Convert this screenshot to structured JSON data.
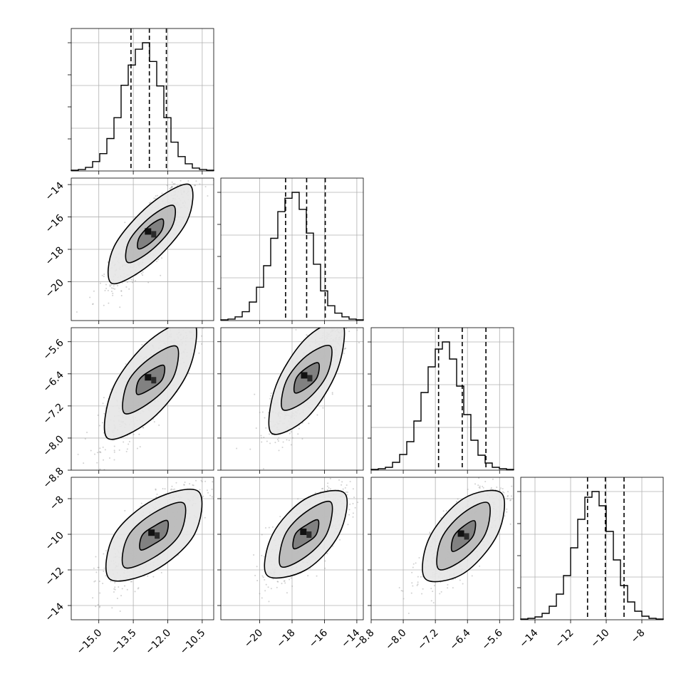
{
  "chart_data": {
    "type": "corner",
    "grid": true,
    "parameters": [
      {
        "index": 0,
        "range": [
          -16.2,
          -10.0
        ],
        "ticks": [
          -15.0,
          -13.5,
          -12.0,
          -10.5
        ],
        "tick_labels": [
          "−15.0",
          "−13.5",
          "−12.0",
          "−10.5"
        ],
        "quantiles": [
          -13.6,
          -12.8,
          -12.06
        ],
        "hist": {
          "edges": [
            -16.2,
            -15.89,
            -15.58,
            -15.27,
            -14.96,
            -14.65,
            -14.34,
            -14.03,
            -13.72,
            -13.41,
            -13.1,
            -12.79,
            -12.48,
            -12.17,
            -11.86,
            -11.55,
            -11.24,
            -10.93,
            -10.62,
            -10.31,
            -10.0
          ],
          "counts": [
            1,
            2,
            5,
            13,
            24,
            45,
            74,
            119,
            147,
            169,
            178,
            152,
            118,
            74,
            40,
            20,
            10,
            4,
            2,
            1
          ]
        }
      },
      {
        "index": 1,
        "range": [
          -22.4,
          -13.6
        ],
        "ticks": [
          -20,
          -18,
          -16,
          -14
        ],
        "tick_labels": [
          "−20",
          "−18",
          "−16",
          "−14"
        ],
        "quantiles": [
          -18.4,
          -17.1,
          -15.95
        ],
        "hist": {
          "edges": [
            -22.4,
            -21.96,
            -21.52,
            -21.08,
            -20.64,
            -20.2,
            -19.76,
            -19.32,
            -18.88,
            -18.44,
            -18.0,
            -17.56,
            -17.12,
            -16.68,
            -16.24,
            -15.8,
            -15.36,
            -14.92,
            -14.48,
            -14.04,
            -13.6
          ],
          "counts": [
            1,
            2,
            5,
            12,
            25,
            45,
            74,
            111,
            147,
            165,
            173,
            150,
            118,
            76,
            40,
            20,
            10,
            5,
            2,
            1
          ]
        }
      },
      {
        "index": 2,
        "range": [
          -8.8,
          -5.25
        ],
        "ticks": [
          -8.8,
          -8.0,
          -7.2,
          -6.4,
          -5.6
        ],
        "tick_labels": [
          "−8.8",
          "−8.0",
          "−7.2",
          "−6.4",
          "−5.6"
        ],
        "quantiles": [
          -7.12,
          -6.53,
          -5.94
        ],
        "hist": {
          "edges": [
            -8.8,
            -8.6225,
            -8.445,
            -8.2675,
            -8.09,
            -7.9125,
            -7.735,
            -7.5575,
            -7.38,
            -7.2025,
            -7.025,
            -6.8475,
            -6.67,
            -6.4925,
            -6.315,
            -6.1375,
            -5.96,
            -5.7825,
            -5.605,
            -5.4275,
            -5.25
          ],
          "counts": [
            1,
            2,
            4,
            11,
            22,
            40,
            69,
            109,
            145,
            170,
            180,
            156,
            118,
            78,
            42,
            21,
            10,
            4,
            2,
            1
          ]
        }
      },
      {
        "index": 3,
        "range": [
          -14.8,
          -6.8
        ],
        "ticks": [
          -14,
          -12,
          -10,
          -8
        ],
        "tick_labels": [
          "−14",
          "−12",
          "−10",
          "−8"
        ],
        "quantiles": [
          -11.05,
          -10.05,
          -9.0
        ],
        "hist": {
          "edges": [
            -14.8,
            -14.4,
            -14.0,
            -13.6,
            -13.2,
            -12.8,
            -12.4,
            -12.0,
            -11.6,
            -11.2,
            -10.8,
            -10.4,
            -10.0,
            -9.6,
            -9.2,
            -8.8,
            -8.4,
            -8.0,
            -7.6,
            -7.2,
            -6.8
          ],
          "counts": [
            1,
            2,
            4,
            9,
            19,
            36,
            62,
            101,
            141,
            172,
            180,
            160,
            124,
            84,
            48,
            25,
            12,
            5,
            2,
            1
          ]
        }
      }
    ],
    "pairs": [
      {
        "row": 1,
        "col": 0,
        "center": [
          -12.75,
          -17.05
        ],
        "contour_levels": [
          [
            [
              -12.75,
              -16.5
            ],
            [
              -12.23,
              -16.13
            ],
            [
              -12.26,
              -16.83
            ],
            [
              -12.75,
              -17.6
            ],
            [
              -13.27,
              -17.97
            ],
            [
              -13.24,
              -17.27
            ]
          ],
          [
            [
              -12.75,
              -16.0
            ],
            [
              -11.76,
              -15.29
            ],
            [
              -11.82,
              -16.62
            ],
            [
              -12.75,
              -18.1
            ],
            [
              -13.74,
              -18.81
            ],
            [
              -13.68,
              -17.48
            ]
          ],
          [
            [
              -12.75,
              -15.2
            ],
            [
              -11.06,
              -14.0
            ],
            [
              -11.17,
              -16.28
            ],
            [
              -12.75,
              -18.9
            ],
            [
              -14.44,
              -20.1
            ],
            [
              -14.33,
              -17.82
            ]
          ]
        ]
      },
      {
        "row": 2,
        "col": 0,
        "center": [
          -12.75,
          -6.55
        ],
        "contour_levels": [
          [
            [
              -12.75,
              -6.32
            ],
            [
              -12.17,
              -6.19
            ],
            [
              -12.24,
              -6.54
            ],
            [
              -12.75,
              -6.78
            ],
            [
              -13.33,
              -6.91
            ],
            [
              -13.26,
              -6.56
            ]
          ],
          [
            [
              -12.75,
              -6.0
            ],
            [
              -11.61,
              -5.72
            ],
            [
              -11.76,
              -6.49
            ],
            [
              -12.75,
              -7.1
            ],
            [
              -13.89,
              -7.38
            ],
            [
              -13.74,
              -6.61
            ]
          ],
          [
            [
              -12.75,
              -5.55
            ],
            [
              -10.87,
              -5.1
            ],
            [
              -11.12,
              -6.35
            ],
            [
              -12.75,
              -7.55
            ],
            [
              -14.63,
              -8.0
            ],
            [
              -14.38,
              -6.75
            ]
          ]
        ]
      },
      {
        "row": 2,
        "col": 1,
        "center": [
          -17.1,
          -6.5
        ],
        "contour_levels": [
          [
            [
              -17.1,
              -6.25
            ],
            [
              -16.37,
              -6.13
            ],
            [
              -16.46,
              -6.49
            ],
            [
              -17.1,
              -6.75
            ],
            [
              -17.83,
              -6.87
            ],
            [
              -17.74,
              -6.51
            ]
          ],
          [
            [
              -17.1,
              -5.95
            ],
            [
              -15.63,
              -5.71
            ],
            [
              -15.84,
              -6.42
            ],
            [
              -17.1,
              -7.05
            ],
            [
              -18.57,
              -7.29
            ],
            [
              -18.36,
              -6.58
            ]
          ],
          [
            [
              -17.1,
              -5.5
            ],
            [
              -14.91,
              -5.13
            ],
            [
              -15.21,
              -6.31
            ],
            [
              -17.1,
              -7.5
            ],
            [
              -19.29,
              -7.87
            ],
            [
              -18.99,
              -6.69
            ]
          ]
        ]
      },
      {
        "row": 3,
        "col": 0,
        "center": [
          -12.6,
          -10.05
        ],
        "contour_levels": [
          [
            [
              -12.6,
              -9.55
            ],
            [
              -12.02,
              -9.23
            ],
            [
              -12.08,
              -10.03
            ],
            [
              -12.6,
              -10.55
            ],
            [
              -13.18,
              -10.87
            ],
            [
              -13.12,
              -10.07
            ]
          ],
          [
            [
              -12.6,
              -8.8
            ],
            [
              -11.31,
              -8.25
            ],
            [
              -11.47,
              -9.98
            ],
            [
              -12.6,
              -11.3
            ],
            [
              -13.89,
              -11.85
            ],
            [
              -13.73,
              -10.12
            ]
          ],
          [
            [
              -12.6,
              -8.05
            ],
            [
              -10.66,
              -7.6
            ],
            [
              -10.86,
              -10.05
            ],
            [
              -12.6,
              -12.05
            ],
            [
              -14.54,
              -12.5
            ],
            [
              -14.34,
              -10.05
            ]
          ]
        ]
      },
      {
        "row": 3,
        "col": 1,
        "center": [
          -17.15,
          -10.0
        ],
        "contour_levels": [
          [
            [
              -17.15,
              -9.5
            ],
            [
              -16.4,
              -9.2
            ],
            [
              -16.5,
              -10.0
            ],
            [
              -17.15,
              -10.5
            ],
            [
              -17.9,
              -10.8
            ],
            [
              -17.8,
              -10.0
            ]
          ],
          [
            [
              -17.15,
              -8.75
            ],
            [
              -15.6,
              -8.2
            ],
            [
              -15.85,
              -9.95
            ],
            [
              -17.15,
              -11.25
            ],
            [
              -18.7,
              -11.8
            ],
            [
              -18.45,
              -10.05
            ]
          ],
          [
            [
              -17.15,
              -8.0
            ],
            [
              -14.75,
              -7.7
            ],
            [
              -15.1,
              -10.0
            ],
            [
              -17.15,
              -12.0
            ],
            [
              -19.55,
              -12.3
            ],
            [
              -19.2,
              -10.0
            ]
          ]
        ]
      },
      {
        "row": 3,
        "col": 2,
        "center": [
          -6.5,
          -10.1
        ],
        "contour_levels": [
          [
            [
              -6.5,
              -9.55
            ],
            [
              -6.22,
              -9.25
            ],
            [
              -6.25,
              -10.05
            ],
            [
              -6.5,
              -10.65
            ],
            [
              -6.78,
              -10.95
            ],
            [
              -6.75,
              -10.15
            ]
          ],
          [
            [
              -6.5,
              -8.8
            ],
            [
              -5.88,
              -8.25
            ],
            [
              -5.95,
              -9.95
            ],
            [
              -6.5,
              -11.4
            ],
            [
              -7.12,
              -11.95
            ],
            [
              -7.05,
              -10.25
            ]
          ],
          [
            [
              -6.5,
              -8.0
            ],
            [
              -5.55,
              -7.7
            ],
            [
              -5.65,
              -10.0
            ],
            [
              -6.5,
              -12.2
            ],
            [
              -7.45,
              -12.5
            ],
            [
              -7.35,
              -10.2
            ]
          ]
        ]
      }
    ]
  }
}
